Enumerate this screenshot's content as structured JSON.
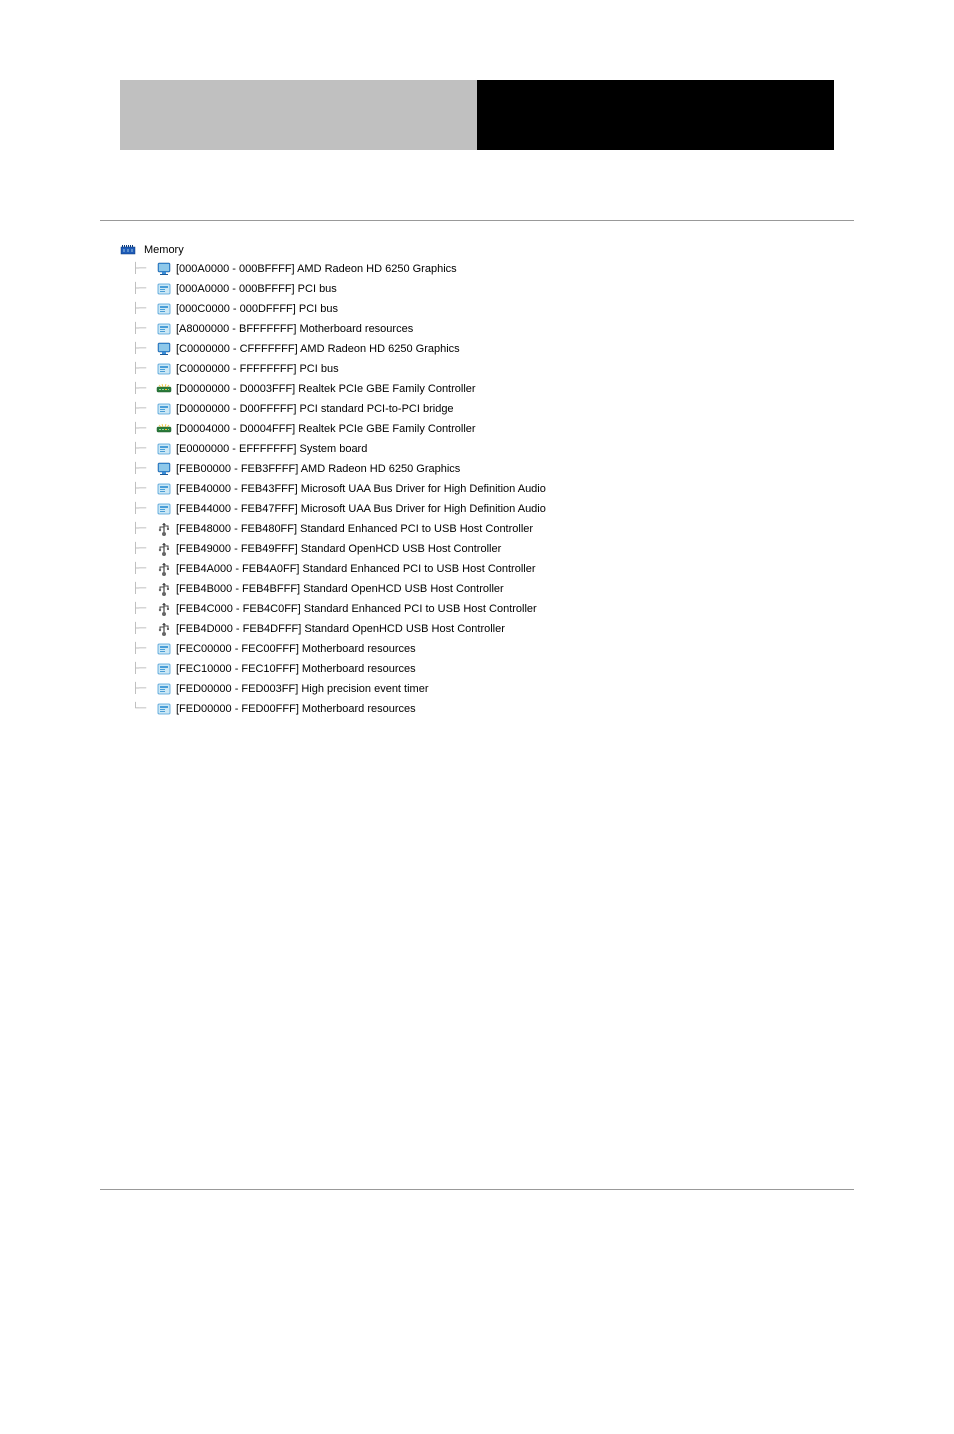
{
  "root": {
    "label": "Memory",
    "icon": "memory"
  },
  "items": [
    {
      "range": "[000A0000 - 000BFFFF]",
      "device": "AMD Radeon HD 6250 Graphics",
      "icon": "display"
    },
    {
      "range": "[000A0000 - 000BFFFF]",
      "device": "PCI bus",
      "icon": "system"
    },
    {
      "range": "[000C0000 - 000DFFFF]",
      "device": "PCI bus",
      "icon": "system"
    },
    {
      "range": "[A8000000 - BFFFFFFF]",
      "device": "Motherboard resources",
      "icon": "system"
    },
    {
      "range": "[C0000000 - CFFFFFFF]",
      "device": "AMD Radeon HD 6250 Graphics",
      "icon": "display"
    },
    {
      "range": "[C0000000 - FFFFFFFF]",
      "device": "PCI bus",
      "icon": "system"
    },
    {
      "range": "[D0000000 - D0003FFF]",
      "device": "Realtek PCIe GBE Family Controller",
      "icon": "network"
    },
    {
      "range": "[D0000000 - D00FFFFF]",
      "device": "PCI standard PCI-to-PCI bridge",
      "icon": "system"
    },
    {
      "range": "[D0004000 - D0004FFF]",
      "device": "Realtek PCIe GBE Family Controller",
      "icon": "network"
    },
    {
      "range": "[E0000000 - EFFFFFFF]",
      "device": "System board",
      "icon": "system"
    },
    {
      "range": "[FEB00000 - FEB3FFFF]",
      "device": "AMD Radeon HD 6250 Graphics",
      "icon": "display"
    },
    {
      "range": "[FEB40000 - FEB43FFF]",
      "device": "Microsoft UAA Bus Driver for High Definition Audio",
      "icon": "system"
    },
    {
      "range": "[FEB44000 - FEB47FFF]",
      "device": "Microsoft UAA Bus Driver for High Definition Audio",
      "icon": "system"
    },
    {
      "range": "[FEB48000 - FEB480FF]",
      "device": "Standard Enhanced PCI to USB Host Controller",
      "icon": "usb"
    },
    {
      "range": "[FEB49000 - FEB49FFF]",
      "device": "Standard OpenHCD USB Host Controller",
      "icon": "usb"
    },
    {
      "range": "[FEB4A000 - FEB4A0FF]",
      "device": "Standard Enhanced PCI to USB Host Controller",
      "icon": "usb"
    },
    {
      "range": "[FEB4B000 - FEB4BFFF]",
      "device": "Standard OpenHCD USB Host Controller",
      "icon": "usb"
    },
    {
      "range": "[FEB4C000 - FEB4C0FF]",
      "device": "Standard Enhanced PCI to USB Host Controller",
      "icon": "usb"
    },
    {
      "range": "[FEB4D000 - FEB4DFFF]",
      "device": "Standard OpenHCD USB Host Controller",
      "icon": "usb"
    },
    {
      "range": "[FEC00000 - FEC00FFF]",
      "device": "Motherboard resources",
      "icon": "system"
    },
    {
      "range": "[FEC10000 - FEC10FFF]",
      "device": "Motherboard resources",
      "icon": "system"
    },
    {
      "range": "[FED00000 - FED003FF]",
      "device": "High precision event timer",
      "icon": "system"
    },
    {
      "range": "[FED00000 - FED00FFF]",
      "device": "Motherboard resources",
      "icon": "system"
    }
  ],
  "icons": {
    "memory_color": "#1e5bb8",
    "display_color": "#3a8dd6",
    "system_color": "#4a9ed8",
    "network_color": "#2a7a3a",
    "usb_color": "#666666"
  }
}
